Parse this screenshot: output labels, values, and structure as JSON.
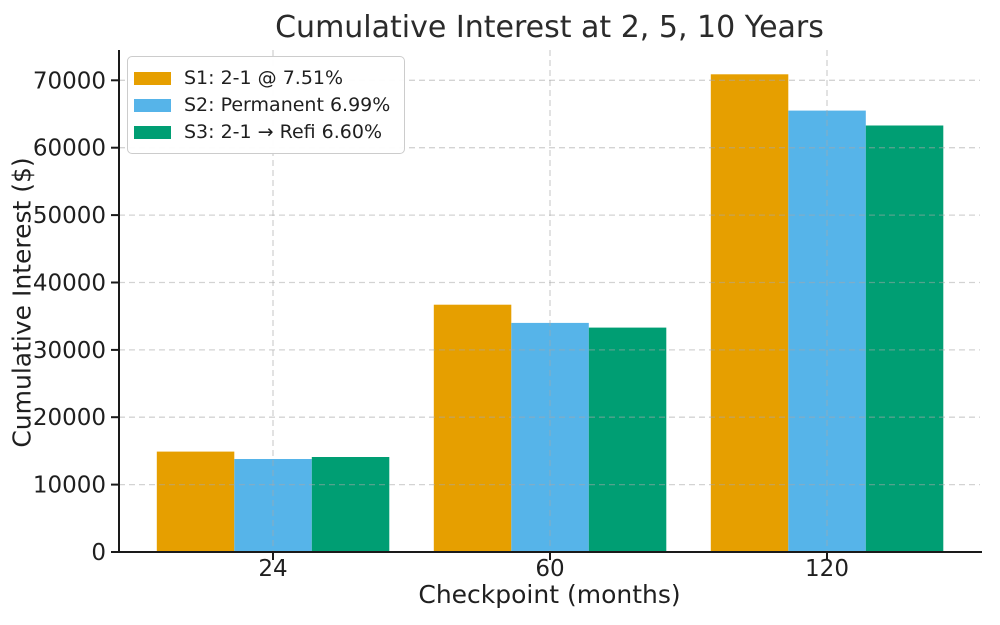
{
  "chart_data": {
    "type": "bar",
    "title": "Cumulative Interest at 2, 5, 10 Years",
    "xlabel": "Checkpoint (months)",
    "ylabel": "Cumulative Interest ($)",
    "categories": [
      "24",
      "60",
      "120"
    ],
    "series": [
      {
        "name": "S1: 2-1 @ 7.51%",
        "color": "#E69F00",
        "values": [
          14900,
          36700,
          70900
        ]
      },
      {
        "name": "S2: Permanent 6.99%",
        "color": "#56B4E9",
        "values": [
          13800,
          34000,
          65500
        ]
      },
      {
        "name": "S3: 2-1 → Refi 6.60%",
        "color": "#009E73",
        "values": [
          14100,
          33300,
          63300
        ]
      }
    ],
    "yticks": [
      0,
      10000,
      20000,
      30000,
      40000,
      50000,
      60000,
      70000
    ],
    "ytick_labels": [
      "0",
      "10000",
      "20000",
      "30000",
      "40000",
      "50000",
      "60000",
      "70000"
    ],
    "ylim": [
      0,
      74500
    ],
    "grid": true,
    "grid_style": "dashed",
    "legend_position": "upper-left",
    "colors": {
      "grid": "#a8a8a8",
      "spine": "#1a1a1a",
      "text": "#1f1f1f",
      "background": "#ffffff"
    }
  }
}
